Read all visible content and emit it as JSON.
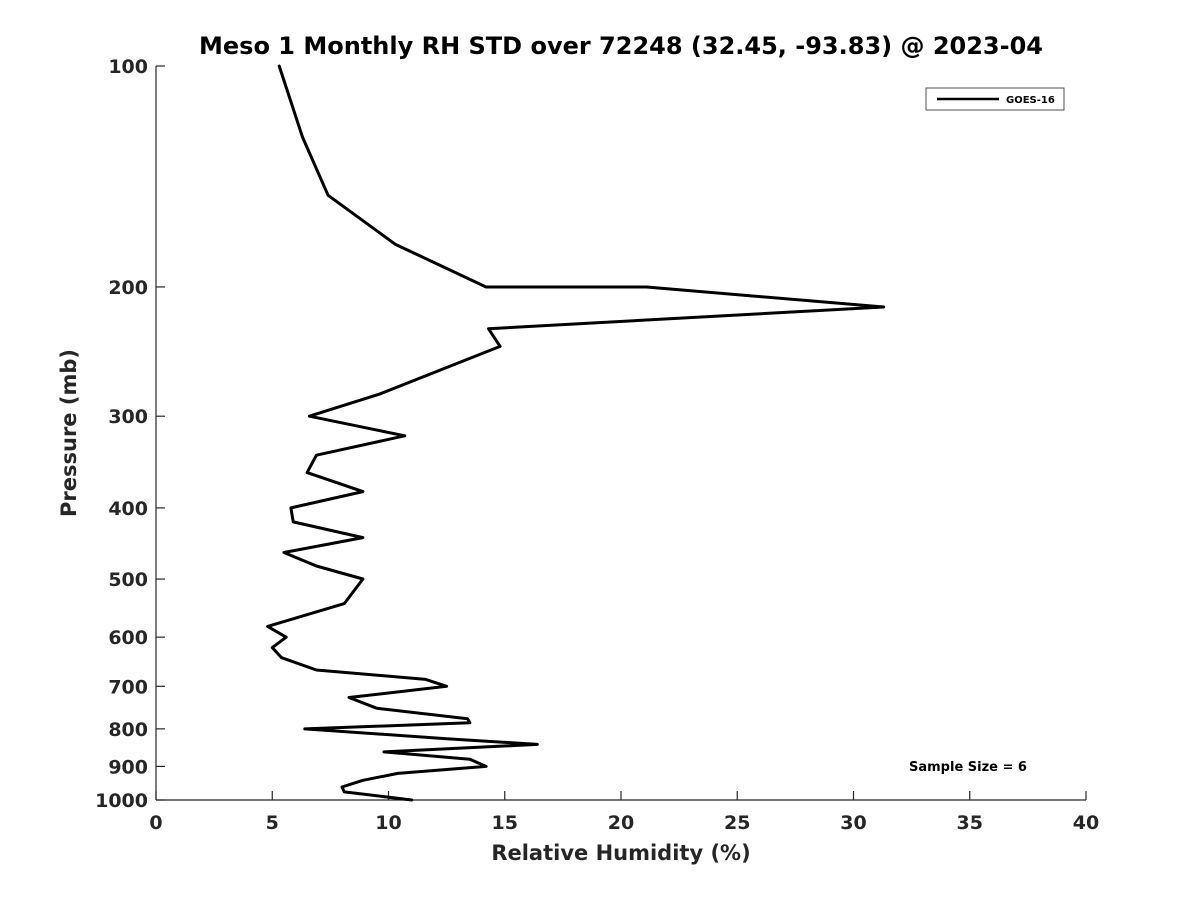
{
  "chart_data": {
    "type": "line",
    "title": "Meso 1 Monthly RH STD over 72248 (32.45, -93.83) @ 2023-04",
    "xlabel": "Relative Humidity (%)",
    "ylabel": "Pressure (mb)",
    "xlim": [
      0,
      40
    ],
    "ylim": [
      100,
      1000
    ],
    "y_scale": "log",
    "y_direction": "reversed",
    "x_ticks": [
      "0",
      "5",
      "10",
      "15",
      "20",
      "25",
      "30",
      "35",
      "40"
    ],
    "y_ticks": [
      "100",
      "200",
      "300",
      "400",
      "500",
      "600",
      "700",
      "800",
      "900",
      "1000"
    ],
    "grid": false,
    "legend_position": "top-right",
    "annotation": "Sample Size = 6",
    "series": [
      {
        "name": "GOES-16",
        "color": "#000000",
        "points": [
          [
            5.3,
            100
          ],
          [
            6.3,
            125
          ],
          [
            7.4,
            150
          ],
          [
            10.3,
            175
          ],
          [
            14.2,
            200
          ],
          [
            21.1,
            200
          ],
          [
            31.3,
            213
          ],
          [
            14.3,
            228
          ],
          [
            14.8,
            241
          ],
          [
            9.6,
            280
          ],
          [
            6.6,
            300
          ],
          [
            10.7,
            319
          ],
          [
            6.9,
            339
          ],
          [
            6.5,
            358
          ],
          [
            8.9,
            380
          ],
          [
            5.8,
            400
          ],
          [
            5.9,
            418
          ],
          [
            8.9,
            439
          ],
          [
            5.5,
            460
          ],
          [
            6.9,
            480
          ],
          [
            8.9,
            500
          ],
          [
            8.1,
            540
          ],
          [
            4.8,
            580
          ],
          [
            5.6,
            600
          ],
          [
            5.0,
            620
          ],
          [
            5.4,
            640
          ],
          [
            6.9,
            665
          ],
          [
            11.6,
            685
          ],
          [
            12.5,
            700
          ],
          [
            8.3,
            725
          ],
          [
            9.5,
            750
          ],
          [
            13.4,
            775
          ],
          [
            13.5,
            785
          ],
          [
            6.4,
            800
          ],
          [
            12.5,
            825
          ],
          [
            16.4,
            840
          ],
          [
            9.8,
            860
          ],
          [
            13.5,
            880
          ],
          [
            14.2,
            900
          ],
          [
            10.4,
            920
          ],
          [
            8.9,
            940
          ],
          [
            8.0,
            960
          ],
          [
            8.1,
            975
          ],
          [
            11.0,
            1000
          ]
        ]
      }
    ]
  }
}
